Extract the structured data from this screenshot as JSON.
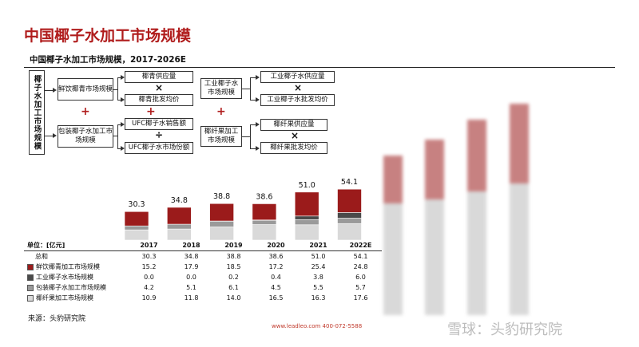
{
  "title": "中国椰子水加工市场规模",
  "subtitle": "中国椰子水加工市场规模，2017-2026E",
  "diagram": {
    "root": "椰子水加工市场规模",
    "level1": [
      "鲜饮椰青市场规模",
      "包装椰子水加工市场规模",
      "工业椰子水市场规模",
      "椰纤果加工市场规模"
    ],
    "factors": [
      "椰青供应量",
      "椰青批发均价",
      "UFC椰子水销售额",
      "UFC椰子水市场份额",
      "工业椰子水供应量",
      "工业椰子水批发均价",
      "椰纤果供应量",
      "椰纤果批发均价"
    ],
    "ops": {
      "plus": "+",
      "times": "×",
      "divide": "÷"
    }
  },
  "chart_data": {
    "type": "bar",
    "stacked": true,
    "categories": [
      "2017",
      "2018",
      "2019",
      "2020",
      "2021",
      "2022E"
    ],
    "totals": [
      30.3,
      34.8,
      38.8,
      38.6,
      51.0,
      54.1
    ],
    "total_labels": [
      "30.3",
      "34.8",
      "38.8",
      "38.6",
      "51.0",
      "54.1"
    ],
    "unit": "单位：[亿元]",
    "series": [
      {
        "name": "鲜饮椰青加工市场规模",
        "color": "#9b1b1b",
        "values": [
          15.2,
          17.9,
          18.5,
          17.2,
          25.4,
          24.8
        ]
      },
      {
        "name": "工业椰子水市场规模",
        "color": "#4a4a4a",
        "values": [
          0.0,
          0.0,
          0.2,
          0.4,
          3.8,
          6.0
        ]
      },
      {
        "name": "包装椰子水加工市场规模",
        "color": "#9a9a9a",
        "values": [
          4.2,
          5.1,
          6.1,
          4.5,
          5.5,
          5.7
        ]
      },
      {
        "name": "椰纤果加工市场规模",
        "color": "#d9d9d9",
        "values": [
          10.9,
          11.8,
          14.0,
          16.5,
          16.3,
          17.6
        ]
      }
    ],
    "table": {
      "total_label": "总和",
      "total_row": [
        "30.3",
        "34.8",
        "38.8",
        "38.6",
        "51.0",
        "54.1"
      ],
      "rows": [
        [
          "15.2",
          "17.9",
          "18.5",
          "17.2",
          "25.4",
          "24.8"
        ],
        [
          "0.0",
          "0.0",
          "0.2",
          "0.4",
          "3.8",
          "6.0"
        ],
        [
          "4.2",
          "5.1",
          "6.1",
          "4.5",
          "5.5",
          "5.7"
        ],
        [
          "10.9",
          "11.8",
          "14.0",
          "16.5",
          "16.3",
          "17.6"
        ]
      ]
    }
  },
  "source": "来源：头豹研究院",
  "footer": "www.leadleo.com  400-072-5588",
  "watermark": "雪球：头豹研究院"
}
